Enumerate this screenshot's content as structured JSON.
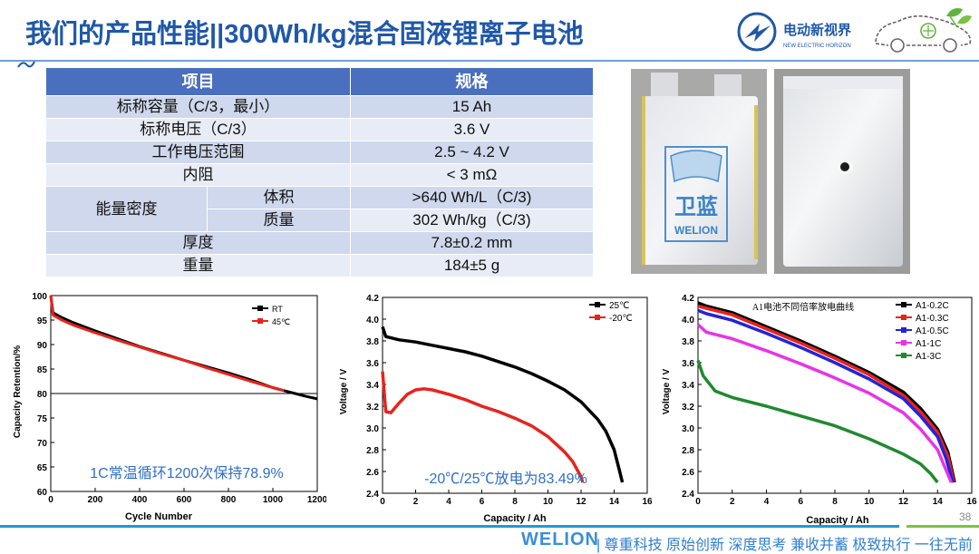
{
  "slide": {
    "title": "我们的产品性能||300Wh/kg混合固液锂离子电池",
    "page_number": "38",
    "brand_name": "电动新视界",
    "brand_sub": "NEW ELECTRIC HORIZON",
    "footer_logo": "WELION",
    "footer_slogan": "| 尊重科技  原始创新  深度思考  兼收并蓄  极致执行  一往无前",
    "accent_color": "#1f58a8"
  },
  "spec_table": {
    "headers": [
      "项目",
      "规格"
    ],
    "rows": [
      {
        "item": "标称容量（C/3，最小）",
        "value": "15 Ah"
      },
      {
        "item": "标称电压（C/3）",
        "value": "3.6 V"
      },
      {
        "item": "工作电压范围",
        "value": "2.5 ~ 4.2 V"
      },
      {
        "item": "内阻",
        "value": "< 3 mΩ"
      },
      {
        "group": "能量密度",
        "item": "体积",
        "value": ">640 Wh/L（C/3)"
      },
      {
        "group": "能量密度",
        "item": "质量",
        "value": "302 Wh/kg（C/3)"
      },
      {
        "item": "厚度",
        "value": "7.8±0.2 mm"
      },
      {
        "item": "重量",
        "value": "184±5 g"
      }
    ]
  },
  "photos": {
    "cell_logo_top": "卫蓝",
    "cell_logo_bottom": "WELION"
  },
  "chart_data": [
    {
      "type": "line",
      "xlabel": "Cycle Number",
      "ylabel": "Capacity Retention/%",
      "xlim": [
        0,
        1200
      ],
      "ylim": [
        60,
        100
      ],
      "xticks": [
        0,
        200,
        400,
        600,
        800,
        1000,
        1200
      ],
      "yticks": [
        60,
        65,
        70,
        75,
        80,
        85,
        90,
        95,
        100
      ],
      "reference_line": 80,
      "annotation": "1C常温循环1200次保持78.9%",
      "legend_position": "top-right",
      "series": [
        {
          "name": "RT",
          "color": "#000000",
          "x": [
            0,
            10,
            50,
            100,
            200,
            300,
            400,
            500,
            600,
            700,
            800,
            900,
            1000,
            1050,
            1100,
            1150,
            1200
          ],
          "y": [
            100,
            96.5,
            95.5,
            94.5,
            92.8,
            91.2,
            89.6,
            88.2,
            86.8,
            85.5,
            84.2,
            82.8,
            81.2,
            80.6,
            80.0,
            79.4,
            78.9
          ]
        },
        {
          "name": "45℃",
          "color": "#e8231c",
          "x": [
            0,
            10,
            50,
            100,
            200,
            300,
            400,
            500,
            600,
            700,
            800,
            900,
            1000,
            1050
          ],
          "y": [
            100,
            96,
            95,
            94,
            92.4,
            90.9,
            89.5,
            88.1,
            86.8,
            85.3,
            83.9,
            82.5,
            81.2,
            80.6
          ]
        }
      ]
    },
    {
      "type": "line",
      "xlabel": "Capacity / Ah",
      "ylabel": "Voltage / V",
      "xlim": [
        0,
        16
      ],
      "ylim": [
        2.4,
        4.2
      ],
      "xticks": [
        0,
        2,
        4,
        6,
        8,
        10,
        12,
        14,
        16
      ],
      "yticks": [
        2.4,
        2.6,
        2.8,
        3.0,
        3.2,
        3.4,
        3.6,
        3.8,
        4.0,
        4.2
      ],
      "annotation": "-20℃/25℃放电为83.49%",
      "legend_position": "top-right",
      "series": [
        {
          "name": "25℃",
          "color": "#000000",
          "x": [
            0,
            0.2,
            1,
            2,
            3,
            4,
            5,
            6,
            7,
            8,
            9,
            10,
            11,
            12,
            13,
            13.5,
            14,
            14.3,
            14.5
          ],
          "y": [
            3.93,
            3.84,
            3.81,
            3.79,
            3.76,
            3.73,
            3.7,
            3.66,
            3.61,
            3.56,
            3.5,
            3.43,
            3.35,
            3.24,
            3.08,
            2.97,
            2.8,
            2.62,
            2.5
          ]
        },
        {
          "name": "-20℃",
          "color": "#e8231c",
          "x": [
            0,
            0.2,
            0.5,
            1,
            1.5,
            2,
            2.5,
            3,
            4,
            5,
            6,
            7,
            8,
            9,
            10,
            11,
            11.5,
            12,
            12.1
          ],
          "y": [
            3.52,
            3.15,
            3.14,
            3.23,
            3.31,
            3.35,
            3.36,
            3.35,
            3.31,
            3.26,
            3.2,
            3.15,
            3.09,
            3.02,
            2.92,
            2.78,
            2.69,
            2.55,
            2.5
          ]
        }
      ]
    },
    {
      "type": "line",
      "title": "A1电池不同倍率放电曲线",
      "xlabel": "Capacity / Ah",
      "ylabel": "Voltage / V",
      "xlim": [
        0,
        16
      ],
      "ylim": [
        2.4,
        4.2
      ],
      "xticks": [
        0,
        2,
        4,
        6,
        8,
        10,
        12,
        14,
        16
      ],
      "yticks": [
        2.4,
        2.6,
        2.8,
        3.0,
        3.2,
        3.4,
        3.6,
        3.8,
        4.0,
        4.2
      ],
      "legend_position": "top-right",
      "series": [
        {
          "name": "A1-0.2C",
          "color": "#000000",
          "x": [
            0,
            0.5,
            2,
            4,
            6,
            8,
            10,
            12,
            13,
            14,
            14.6,
            15.0
          ],
          "y": [
            4.15,
            4.12,
            4.06,
            3.93,
            3.8,
            3.66,
            3.51,
            3.33,
            3.18,
            2.99,
            2.78,
            2.5
          ]
        },
        {
          "name": "A1-0.3C",
          "color": "#e8231c",
          "x": [
            0,
            0.5,
            2,
            4,
            6,
            8,
            10,
            12,
            13,
            14,
            14.6,
            14.95
          ],
          "y": [
            4.12,
            4.1,
            4.04,
            3.91,
            3.78,
            3.64,
            3.49,
            3.3,
            3.15,
            2.96,
            2.74,
            2.5
          ]
        },
        {
          "name": "A1-0.5C",
          "color": "#2323d8",
          "x": [
            0,
            0.5,
            2,
            4,
            6,
            8,
            10,
            12,
            13,
            14,
            14.5,
            14.9
          ],
          "y": [
            4.08,
            4.05,
            3.99,
            3.87,
            3.74,
            3.6,
            3.45,
            3.27,
            3.11,
            2.92,
            2.72,
            2.5
          ]
        },
        {
          "name": "A1-1C",
          "color": "#e833e8",
          "x": [
            0,
            0.5,
            2,
            4,
            6,
            8,
            10,
            12,
            13,
            14,
            14.4,
            14.8
          ],
          "y": [
            3.95,
            3.88,
            3.82,
            3.71,
            3.59,
            3.46,
            3.32,
            3.14,
            2.99,
            2.8,
            2.65,
            2.5
          ]
        },
        {
          "name": "A1-3C",
          "color": "#1f8a2e",
          "x": [
            0,
            0.3,
            1,
            2,
            4,
            6,
            8,
            10,
            12,
            13,
            13.6,
            14.0
          ],
          "y": [
            3.62,
            3.48,
            3.34,
            3.28,
            3.2,
            3.11,
            3.02,
            2.9,
            2.76,
            2.67,
            2.58,
            2.5
          ]
        }
      ]
    }
  ]
}
